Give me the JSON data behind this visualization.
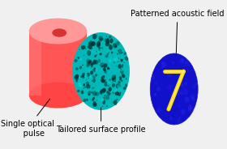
{
  "bg_color": "#f0f0f0",
  "title": "",
  "cylinder_color_outer": "#ff4444",
  "cylinder_color_inner": "#ff9999",
  "cylinder_highlight": "#ffcccc",
  "teal_color": "#00bfbf",
  "label_single_optical": "Single optical\n     pulse",
  "label_tailored": "Tailored surface profile",
  "label_patterned": "Patterned acoustic field",
  "label_fontsize": 7,
  "annotation_fontsize": 7
}
